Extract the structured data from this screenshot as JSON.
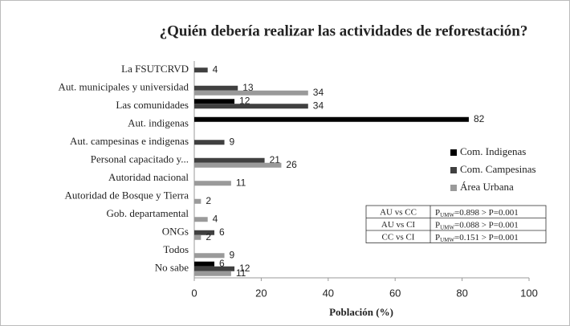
{
  "chart_data": {
    "type": "hbar",
    "title": "¿Quién debería realizar las actividades de reforestación?",
    "xlabel": "Población (%)",
    "categories": [
      "La FSUTCRVD",
      "Aut. municipales y universidad",
      "Las comunidades",
      "Aut. indigenas",
      "Aut. campesinas e indigenas",
      "Personal capacitado y...",
      "Autoridad nacional",
      "Autoridad de Bosque y Tierra",
      "Gob. departamental",
      "ONGs",
      "Todos",
      "No sabe"
    ],
    "series": [
      {
        "name": "Com. Indigenas",
        "color": "#000000",
        "values": [
          null,
          null,
          12,
          82,
          null,
          null,
          null,
          null,
          null,
          null,
          null,
          6
        ]
      },
      {
        "name": "Com. Campesinas",
        "color": "#404040",
        "values": [
          4,
          13,
          34,
          null,
          9,
          21,
          null,
          null,
          null,
          6,
          null,
          12
        ]
      },
      {
        "name": "Área Urbana",
        "color": "#9a9a9a",
        "values": [
          null,
          34,
          null,
          null,
          null,
          26,
          11,
          2,
          4,
          2,
          9,
          11
        ]
      }
    ],
    "xlim": [
      0,
      100
    ],
    "xticks": [
      0,
      20,
      40,
      60,
      80,
      100
    ],
    "legend": "right",
    "stats_table": [
      {
        "comparison": "AU vs CC",
        "p": "P",
        "sub": "UMW",
        "rest": "=0.898 > P=0.001"
      },
      {
        "comparison": "AU vs CI",
        "p": "P",
        "sub": "UMW",
        "rest": "=0.088 > P=0.001"
      },
      {
        "comparison": "CC vs CI",
        "p": "P",
        "sub": "UMW",
        "rest": "=0.151 > P=0.001"
      }
    ]
  }
}
